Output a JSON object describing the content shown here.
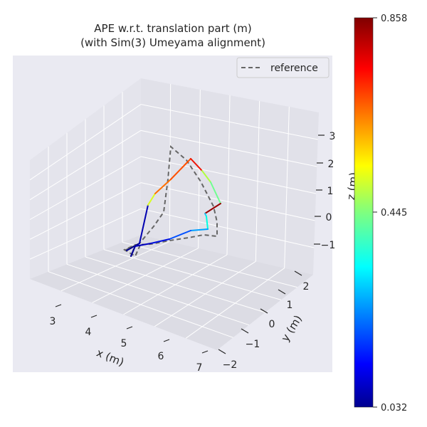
{
  "chart_data": {
    "type": "line",
    "title_line1": "APE w.r.t. translation part (m)",
    "title_line2": "(with Sim(3) Umeyama alignment)",
    "xlabel": "x (m)",
    "ylabel": "y (m)",
    "zlabel": "z (m)",
    "x_ticks": [
      "3",
      "4",
      "5",
      "6",
      "7"
    ],
    "y_ticks": [
      "−2",
      "−1",
      "0",
      "1",
      "2"
    ],
    "z_ticks": [
      "−1",
      "0",
      "1",
      "2",
      "3"
    ],
    "legend": {
      "placement": "top-right",
      "entries": [
        "reference"
      ]
    },
    "colorbar": {
      "colormap": "jet",
      "min": 0.032,
      "mid": 0.445,
      "max": 0.858,
      "tick_labels": [
        "0.858",
        "0.445",
        "0.032"
      ]
    },
    "grid": true,
    "colors": {
      "pane": "#e9e9f0",
      "reference": "#666666"
    }
  }
}
